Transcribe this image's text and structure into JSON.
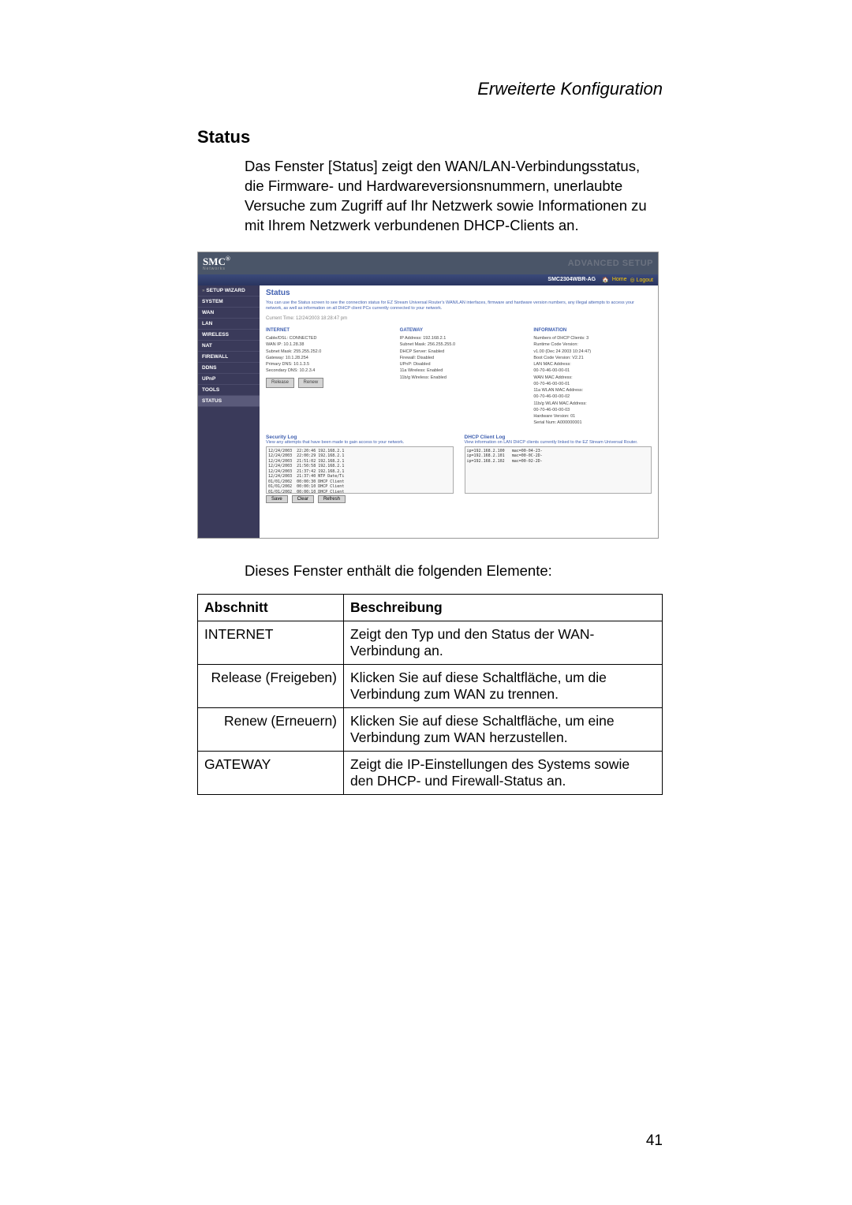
{
  "header": "Erweiterte Konfiguration",
  "sectionTitle": "Status",
  "bodyText": "Das Fenster [Status] zeigt den WAN/LAN-Verbindungsstatus, die Firmware- und Hardwareversionsnummern, unerlaubte Versuche zum Zugriff auf Ihr Netzwerk sowie Informationen zu mit Ihrem Netzwerk verbundenen DHCP-Clients an.",
  "screenshot": {
    "logo": "SMC",
    "logoSup": "®",
    "logoSub": "Networks",
    "advanced": "ADVANCED SETUP",
    "model": "SMC2304WBR-AG",
    "homeLink": "Home",
    "logoutLink": "Logout",
    "sidebar": [
      "SETUP WIZARD",
      "SYSTEM",
      "WAN",
      "LAN",
      "WIRELESS",
      "NAT",
      "FIREWALL",
      "DDNS",
      "UPnP",
      "TOOLS",
      "STATUS"
    ],
    "statusTitle": "Status",
    "desc": "You can use the Status screen to see the connection status for EZ Stream Universal Router's WAN/LAN interfaces, firmware and hardware version numbers, any illegal attempts to access your network, as well as information on all DHCP client PCs currently connected to your network.",
    "currentTime": "Current Time: 12/24/2003 18:28:47 pm",
    "cols": {
      "internet": {
        "title": "INTERNET",
        "lines": [
          "Cable/DSL:   CONNECTED",
          "WAN IP:   10.1.28.38",
          "Subnet Mask:   255.255.252.0",
          "Gateway:   10.1.28.254",
          "Primary DNS:   10.1.3.5",
          "Secondary DNS:   10.2.3.4"
        ]
      },
      "gateway": {
        "title": "GATEWAY",
        "lines": [
          "IP Address:   192.168.2.1",
          "Subnet Mask:   256.255.255.0",
          "DHCP Server:   Enabled",
          "Firewall:   Disabled",
          "UPnP:   Disabled",
          "11a Wireless:   Enabled",
          "11b/g Wireless:   Enabled"
        ]
      },
      "info": {
        "title": "INFORMATION",
        "lines": [
          "Numbers of DHCP Clients:   3",
          "Runtime Code Version:",
          "   v1.00 (Dec 24 2003 10:24:47)",
          "Boot Code Version:   V2.21",
          "LAN MAC Address:",
          "   00-70-46-00-00-01",
          "WAN MAC Address:",
          "   00-70-46-00-00-01",
          "11a WLAN MAC Address:",
          "   00-70-46-00-00-02",
          "11b/g WLAN MAC Address:",
          "   00-70-46-00-00-03",
          "Hardware Version:   01",
          "Serial Num:   A000000001"
        ]
      }
    },
    "btnRelease": "Release",
    "btnRenew": "Renew",
    "secLog": {
      "title": "Security Log",
      "desc": "View any attempts that have been made to gain access to your network.",
      "content": "12/24/2003  22:20:46 192.168.2.1\n12/24/2003  22:00:29 192.168.2.1\n12/24/2003  21:51:02 192.168.2.1\n12/24/2003  21:50:58 192.168.2.1\n12/24/2003  21:37:42 192.168.2.1\n12/24/2003  21:37:40 NTP Date/Ti\n01/01/2002  00:00:30 DHCP Client\n01/01/2002  00:00:10 DHCP Client\n01/01/2002  00:00:10 DHCP Client"
    },
    "dhcpLog": {
      "title": "DHCP Client Log",
      "desc": "View information on LAN DHCP clients currently linked to the EZ Stream Universal Router.",
      "content": "ip=192.168.2.100   mac=00-04-23-\nip=192.168.2.101   mac=00-0C-2D-\nip=192.168.2.102   mac=00-02-2D-"
    },
    "btnSave": "Save",
    "btnClear": "Clear",
    "btnRefresh": "Refresh"
  },
  "caption": "Dieses Fenster enthält die folgenden Elemente:",
  "table": {
    "headers": [
      "Abschnitt",
      "Beschreibung"
    ],
    "rows": [
      [
        "INTERNET",
        "Zeigt den Typ und den Status der WAN-Verbindung an."
      ],
      [
        "Release (Freigeben)",
        "Klicken Sie auf diese Schaltfläche, um die Verbindung zum WAN zu trennen."
      ],
      [
        "Renew (Erneuern)",
        "Klicken Sie auf diese Schaltfläche, um eine Verbindung zum WAN herzustellen."
      ],
      [
        "GATEWAY",
        "Zeigt die IP-Einstellungen des Systems sowie den DHCP- und Firewall-Status an."
      ]
    ]
  },
  "pageNum": "41"
}
